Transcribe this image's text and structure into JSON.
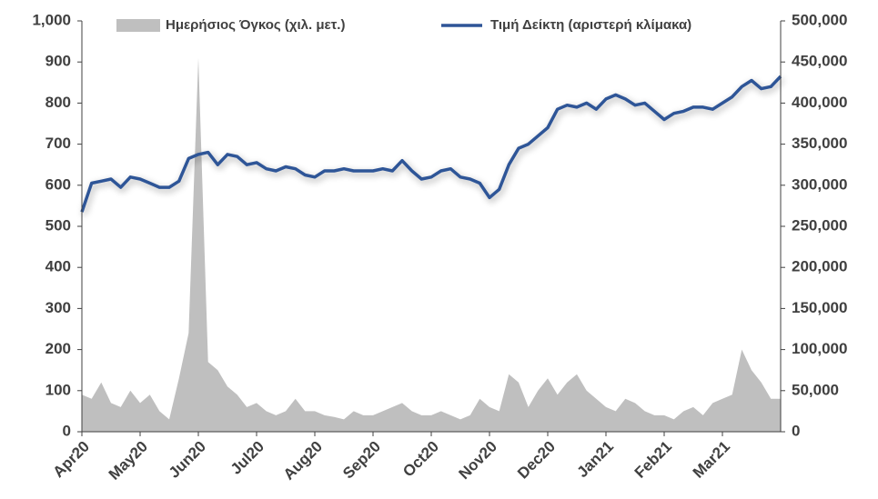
{
  "chart_data": {
    "type": "line",
    "categories": [
      "Apr20",
      null,
      null,
      null,
      null,
      null,
      "May20",
      null,
      null,
      null,
      null,
      null,
      "Jun20",
      null,
      null,
      null,
      null,
      null,
      "Jul20",
      null,
      null,
      null,
      null,
      null,
      "Aug20",
      null,
      null,
      null,
      null,
      null,
      "Sep20",
      null,
      null,
      null,
      null,
      null,
      "Oct20",
      null,
      null,
      null,
      null,
      null,
      "Nov20",
      null,
      null,
      null,
      null,
      null,
      "Dec20",
      null,
      null,
      null,
      null,
      null,
      "Jan21",
      null,
      null,
      null,
      null,
      null,
      "Feb21",
      null,
      null,
      null,
      null,
      null,
      "Mar21",
      null,
      null,
      null,
      null,
      null,
      null
    ],
    "series": [
      {
        "name": "Ημερήσιος Όγκος (χιλ. μετ.)",
        "color": "#bfbfbf",
        "axis": "y2",
        "kind": "area",
        "values": [
          45000,
          40000,
          60000,
          35000,
          30000,
          50000,
          35000,
          45000,
          25000,
          15000,
          65000,
          120000,
          455000,
          85000,
          75000,
          55000,
          45000,
          30000,
          35000,
          25000,
          20000,
          25000,
          40000,
          25000,
          25000,
          20000,
          18000,
          15000,
          25000,
          20000,
          20000,
          25000,
          30000,
          35000,
          25000,
          20000,
          20000,
          25000,
          20000,
          15000,
          20000,
          40000,
          30000,
          25000,
          70000,
          60000,
          30000,
          50000,
          65000,
          45000,
          60000,
          70000,
          50000,
          40000,
          30000,
          25000,
          40000,
          35000,
          25000,
          20000,
          20000,
          15000,
          25000,
          30000,
          20000,
          35000,
          40000,
          45000,
          100000,
          75000,
          60000,
          40000,
          40000
        ]
      },
      {
        "name": "Τιμή Δείκτη (αριστερή κλίμακα)",
        "color": "#2f5597",
        "axis": "y",
        "values": [
          535,
          605,
          610,
          615,
          595,
          620,
          615,
          605,
          595,
          595,
          610,
          665,
          675,
          680,
          650,
          675,
          670,
          650,
          655,
          640,
          635,
          645,
          640,
          625,
          620,
          635,
          635,
          640,
          635,
          635,
          635,
          640,
          635,
          660,
          635,
          615,
          620,
          635,
          640,
          620,
          615,
          605,
          570,
          590,
          650,
          690,
          700,
          720,
          740,
          785,
          795,
          790,
          800,
          785,
          810,
          820,
          810,
          795,
          800,
          780,
          760,
          775,
          780,
          790,
          790,
          785,
          800,
          815,
          840,
          855,
          835,
          840,
          865
        ]
      }
    ],
    "ylim": [
      0,
      1000
    ],
    "yticks": [
      0,
      100,
      200,
      300,
      400,
      500,
      600,
      700,
      800,
      900,
      {
        "value": 1000,
        "label": "1,000"
      }
    ],
    "y2lim": [
      0,
      500000
    ],
    "y2ticks": [
      0,
      {
        "value": 50000,
        "label": "50,000"
      },
      {
        "value": 100000,
        "label": "100,000"
      },
      {
        "value": 150000,
        "label": "150,000"
      },
      {
        "value": 200000,
        "label": "200,000"
      },
      {
        "value": 250000,
        "label": "250,000"
      },
      {
        "value": 300000,
        "label": "300,000"
      },
      {
        "value": 350000,
        "label": "350,000"
      },
      {
        "value": 400000,
        "label": "400,000"
      },
      {
        "value": 450000,
        "label": "450,000"
      },
      {
        "value": 500000,
        "label": "500,000"
      }
    ],
    "legend": "top"
  }
}
